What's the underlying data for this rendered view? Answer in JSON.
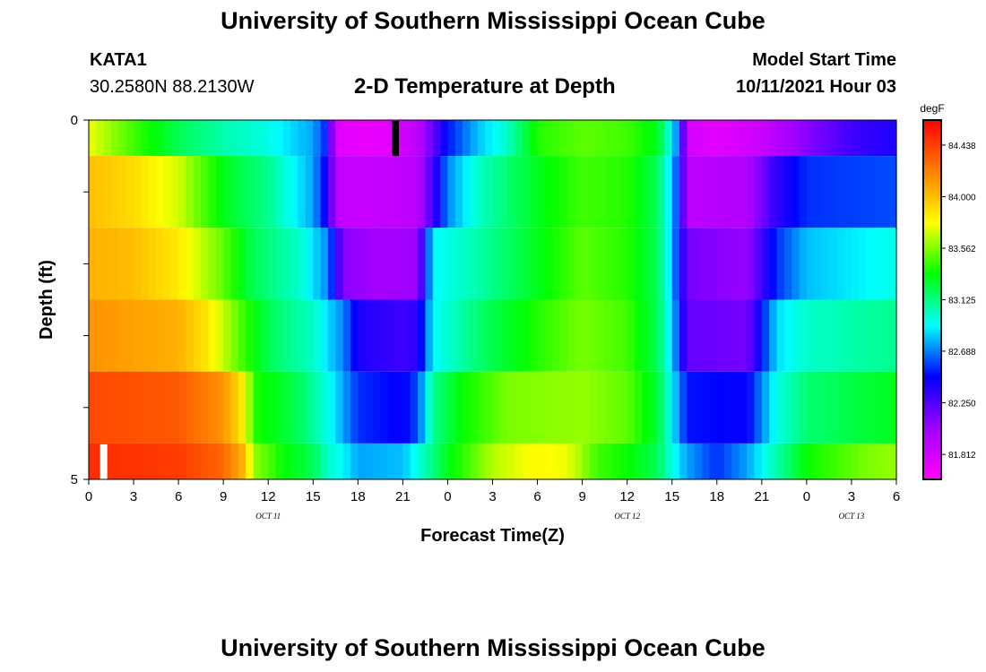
{
  "header": {
    "title": "University of Southern Mississippi Ocean Cube",
    "station": "KATA1",
    "coordinates": "30.2580N  88.2130W",
    "plot_title": "2-D Temperature at Depth",
    "model_start_label": "Model Start Time",
    "model_start_time": "10/11/2021 Hour 03"
  },
  "footer": {
    "title": "University of Southern Mississippi Ocean Cube"
  },
  "chart_data": {
    "type": "heatmap",
    "title": "2-D Temperature at Depth",
    "xlabel": "Forecast Time(Z)",
    "ylabel": "Depth (ft)",
    "x_ticks": [
      "0",
      "3",
      "6",
      "9",
      "12",
      "15",
      "18",
      "21",
      "0",
      "3",
      "6",
      "9",
      "12",
      "15",
      "18",
      "21",
      "0",
      "3",
      "6"
    ],
    "date_labels": [
      {
        "label": "OCT 11",
        "hour": 12
      },
      {
        "label": "OCT 12",
        "hour": 36
      },
      {
        "label": "OCT 13",
        "hour": 51
      }
    ],
    "y_tick_labels": [
      {
        "depth": 0,
        "label": "0"
      },
      {
        "depth": 5,
        "label": "5"
      }
    ],
    "ylim": [
      0,
      5
    ],
    "xlim_hours": [
      0,
      54
    ],
    "colorbar": {
      "unit": "degF",
      "ticks": [
        84.438,
        84.0,
        83.562,
        83.125,
        82.688,
        82.25,
        81.812
      ],
      "range": [
        81.6,
        84.65
      ],
      "colors": [
        "#ff00ff",
        "#a000ff",
        "#0000ff",
        "#00ffff",
        "#00ff00",
        "#ffff00",
        "#ff8000",
        "#ff0000"
      ]
    },
    "depth_layers": [
      {
        "depth_range": [
          0,
          0.5
        ],
        "keys": [
          [
            0,
            83.75
          ],
          [
            3,
            83.45
          ],
          [
            6,
            83.2
          ],
          [
            9,
            83.05
          ],
          [
            12,
            82.95
          ],
          [
            15,
            82.75
          ],
          [
            16,
            82.5
          ],
          [
            16.5,
            81.75
          ],
          [
            18,
            81.7
          ],
          [
            20,
            81.72
          ],
          [
            22,
            81.9
          ],
          [
            24,
            82.5
          ],
          [
            26,
            82.8
          ],
          [
            28,
            83.0
          ],
          [
            30,
            83.4
          ],
          [
            33,
            83.5
          ],
          [
            36,
            83.45
          ],
          [
            38,
            83.3
          ],
          [
            39,
            82.9
          ],
          [
            39.5,
            82.6
          ],
          [
            40,
            81.8
          ],
          [
            42,
            81.72
          ],
          [
            45,
            81.85
          ],
          [
            48,
            82.1
          ],
          [
            51,
            82.3
          ],
          [
            54,
            82.4
          ]
        ]
      },
      {
        "depth_range": [
          0.5,
          1.5
        ],
        "keys": [
          [
            0,
            84.0
          ],
          [
            3,
            83.9
          ],
          [
            6,
            83.7
          ],
          [
            9,
            83.3
          ],
          [
            12,
            83.1
          ],
          [
            15,
            82.75
          ],
          [
            16,
            82.4
          ],
          [
            16.5,
            81.9
          ],
          [
            18,
            81.85
          ],
          [
            22,
            81.9
          ],
          [
            24,
            82.7
          ],
          [
            26,
            83.0
          ],
          [
            30,
            83.3
          ],
          [
            33,
            83.45
          ],
          [
            36,
            83.4
          ],
          [
            38,
            83.2
          ],
          [
            39,
            82.8
          ],
          [
            39.5,
            82.5
          ],
          [
            40,
            81.9
          ],
          [
            44,
            81.95
          ],
          [
            46,
            82.35
          ],
          [
            48,
            82.55
          ],
          [
            54,
            82.6
          ]
        ]
      },
      {
        "depth_range": [
          1.5,
          2.5
        ],
        "keys": [
          [
            0,
            84.05
          ],
          [
            3,
            84.0
          ],
          [
            6,
            83.85
          ],
          [
            9,
            83.5
          ],
          [
            11,
            83.2
          ],
          [
            14,
            83.0
          ],
          [
            16,
            82.7
          ],
          [
            17,
            82.1
          ],
          [
            20,
            82.0
          ],
          [
            22,
            82.05
          ],
          [
            23,
            82.9
          ],
          [
            26,
            83.05
          ],
          [
            30,
            83.3
          ],
          [
            33,
            83.5
          ],
          [
            36,
            83.4
          ],
          [
            38,
            83.2
          ],
          [
            39,
            82.8
          ],
          [
            40,
            82.15
          ],
          [
            44,
            82.05
          ],
          [
            46,
            82.55
          ],
          [
            48,
            82.8
          ],
          [
            54,
            82.95
          ]
        ]
      },
      {
        "depth_range": [
          2.5,
          3.5
        ],
        "keys": [
          [
            0,
            84.15
          ],
          [
            6,
            84.05
          ],
          [
            8,
            83.85
          ],
          [
            10,
            83.5
          ],
          [
            12,
            83.2
          ],
          [
            15,
            83.0
          ],
          [
            17,
            82.7
          ],
          [
            18,
            82.4
          ],
          [
            21,
            82.3
          ],
          [
            22,
            82.35
          ],
          [
            23,
            82.9
          ],
          [
            26,
            83.15
          ],
          [
            30,
            83.4
          ],
          [
            33,
            83.55
          ],
          [
            36,
            83.45
          ],
          [
            38,
            83.2
          ],
          [
            39,
            82.85
          ],
          [
            40,
            82.2
          ],
          [
            44,
            82.15
          ],
          [
            46,
            82.85
          ],
          [
            48,
            83.0
          ],
          [
            54,
            83.1
          ]
        ]
      },
      {
        "depth_range": [
          3.5,
          4.5
        ],
        "keys": [
          [
            0,
            84.4
          ],
          [
            6,
            84.35
          ],
          [
            9,
            84.15
          ],
          [
            10.5,
            83.8
          ],
          [
            11,
            83.4
          ],
          [
            14,
            83.2
          ],
          [
            16,
            82.95
          ],
          [
            18,
            82.55
          ],
          [
            21,
            82.45
          ],
          [
            22,
            82.6
          ],
          [
            23,
            83.1
          ],
          [
            25,
            83.35
          ],
          [
            28,
            83.55
          ],
          [
            33,
            83.6
          ],
          [
            36,
            83.5
          ],
          [
            38,
            83.25
          ],
          [
            39,
            82.9
          ],
          [
            40,
            82.5
          ],
          [
            44,
            82.45
          ],
          [
            46,
            82.95
          ],
          [
            48,
            83.15
          ],
          [
            54,
            83.3
          ]
        ]
      },
      {
        "depth_range": [
          4.5,
          5.0
        ],
        "keys": [
          [
            0,
            84.5
          ],
          [
            6,
            84.45
          ],
          [
            9,
            84.3
          ],
          [
            10.5,
            84.0
          ],
          [
            11,
            83.6
          ],
          [
            13,
            83.35
          ],
          [
            15,
            83.2
          ],
          [
            16,
            83.0
          ],
          [
            17,
            82.9
          ],
          [
            18,
            82.75
          ],
          [
            21,
            82.8
          ],
          [
            22,
            82.95
          ],
          [
            24,
            83.3
          ],
          [
            27,
            83.65
          ],
          [
            30,
            83.8
          ],
          [
            32,
            83.75
          ],
          [
            34,
            83.45
          ],
          [
            36,
            83.35
          ],
          [
            38,
            83.2
          ],
          [
            39,
            82.95
          ],
          [
            40,
            82.75
          ],
          [
            42,
            82.55
          ],
          [
            44,
            82.75
          ],
          [
            46,
            83.05
          ],
          [
            48,
            83.35
          ],
          [
            52,
            83.55
          ],
          [
            54,
            83.6
          ]
        ]
      }
    ],
    "markers": [
      {
        "hour": 20.5,
        "depth_range": [
          0,
          0.5
        ],
        "color": "#000000"
      },
      {
        "hour": 1.0,
        "depth_range": [
          4.5,
          5.0
        ],
        "color": "#ffffff"
      }
    ]
  }
}
